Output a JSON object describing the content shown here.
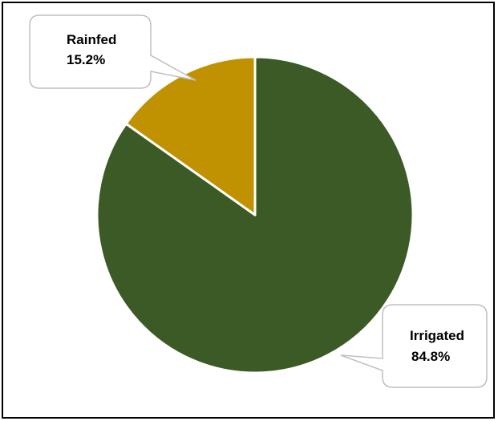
{
  "chart_data": {
    "type": "pie",
    "slices": [
      {
        "label": "Irrigated",
        "value": 84.8,
        "value_label": "84.8%",
        "color": "#3B5A25"
      },
      {
        "label": "Rainfed",
        "value": 15.2,
        "value_label": "15.2%",
        "color": "#C09100"
      }
    ],
    "slice_border_color": "#ffffff",
    "callout_border_color": "#BFBFBF",
    "legend": "none",
    "start_angle": "12 o'clock, clockwise"
  }
}
